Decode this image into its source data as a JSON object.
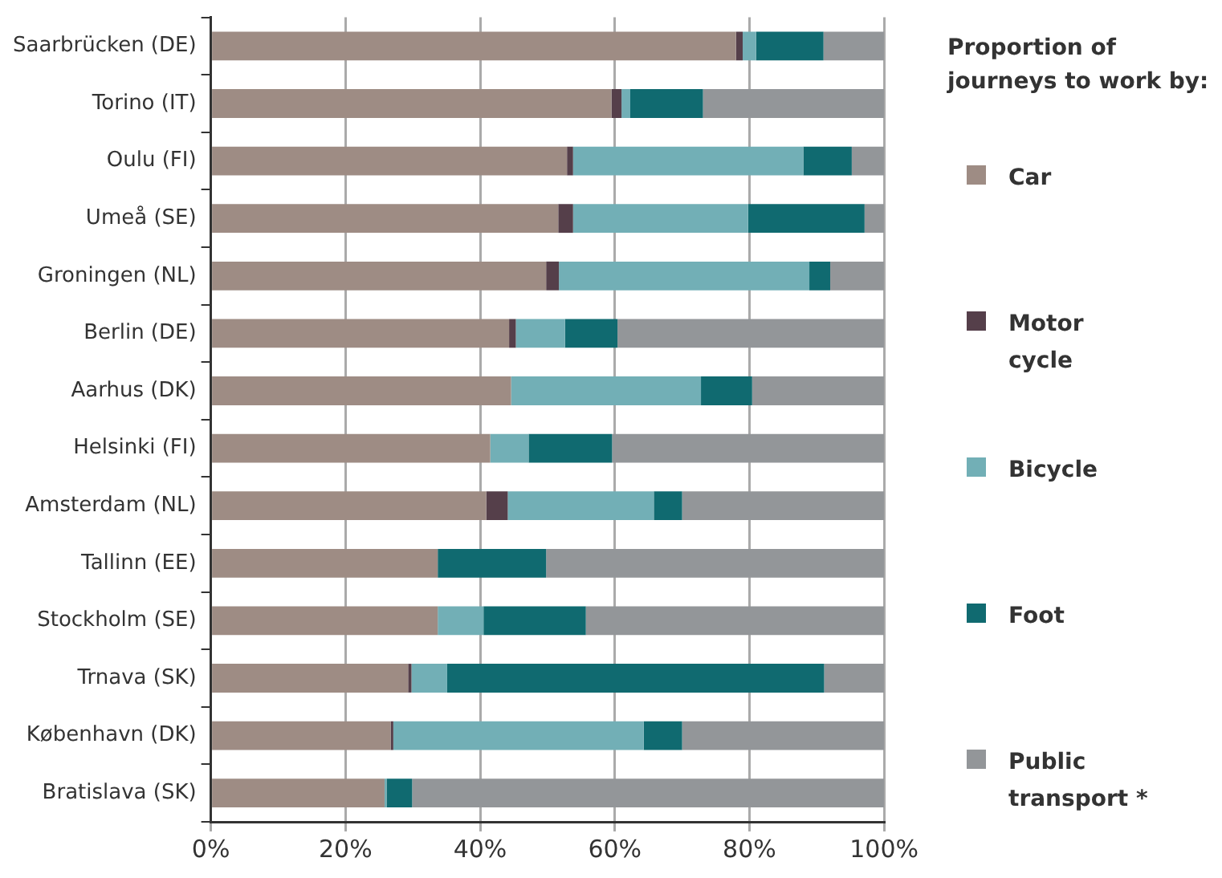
{
  "chart_data": {
    "type": "bar",
    "orientation": "horizontal",
    "stacked": true,
    "legend_title": "Proportion of journeys to work by:",
    "categories": [
      "Saarbrücken (DE)",
      "Torino (IT)",
      "Oulu (FI)",
      "Umeå (SE)",
      "Groningen (NL)",
      "Berlin (DE)",
      "Aarhus (DK)",
      "Helsinki (FI)",
      "Amsterdam (NL)",
      "Tallinn (EE)",
      "Stockholm (SE)",
      "Trnava (SK)",
      "København (DK)",
      "Bratislava (SK)"
    ],
    "series": [
      {
        "name": "Car",
        "color": "#9e8c84",
        "values": [
          78,
          59.5,
          52.9,
          51.6,
          49.8,
          44.3,
          44.6,
          41.5,
          40.9,
          33.7,
          33.7,
          29.3,
          26.7,
          25.8
        ]
      },
      {
        "name": "Motor cycle",
        "color": "#553f4a",
        "values": [
          1,
          1.5,
          0.9,
          2.2,
          1.9,
          1,
          0,
          0,
          3.2,
          0,
          0,
          0.5,
          0.4,
          0
        ]
      },
      {
        "name": "Bicycle",
        "color": "#72afb6",
        "values": [
          2,
          1.3,
          34.2,
          26,
          37.2,
          7.3,
          28.2,
          5.7,
          21.7,
          0,
          6.8,
          5.3,
          37.2,
          0.3
        ]
      },
      {
        "name": "Foot",
        "color": "#106a70",
        "values": [
          10,
          10.8,
          7.2,
          17.3,
          3.1,
          7.8,
          7.6,
          12.4,
          4.2,
          16.1,
          15.2,
          56,
          5.7,
          3.8
        ]
      },
      {
        "name": "Public transport *",
        "color": "#939699",
        "values": [
          9,
          26.9,
          4.8,
          2.9,
          8,
          39.6,
          19.6,
          40.4,
          30,
          50.2,
          44.3,
          8.9,
          30,
          70.1
        ]
      }
    ],
    "xlim": [
      0,
      100
    ],
    "xticks": [
      {
        "value": 0,
        "label": "0%"
      },
      {
        "value": 20,
        "label": "20%"
      },
      {
        "value": 40,
        "label": "40%"
      },
      {
        "value": 60,
        "label": "60%"
      },
      {
        "value": 80,
        "label": "80%"
      },
      {
        "value": 100,
        "label": "100%"
      }
    ],
    "grid": "x",
    "legend": "right"
  }
}
